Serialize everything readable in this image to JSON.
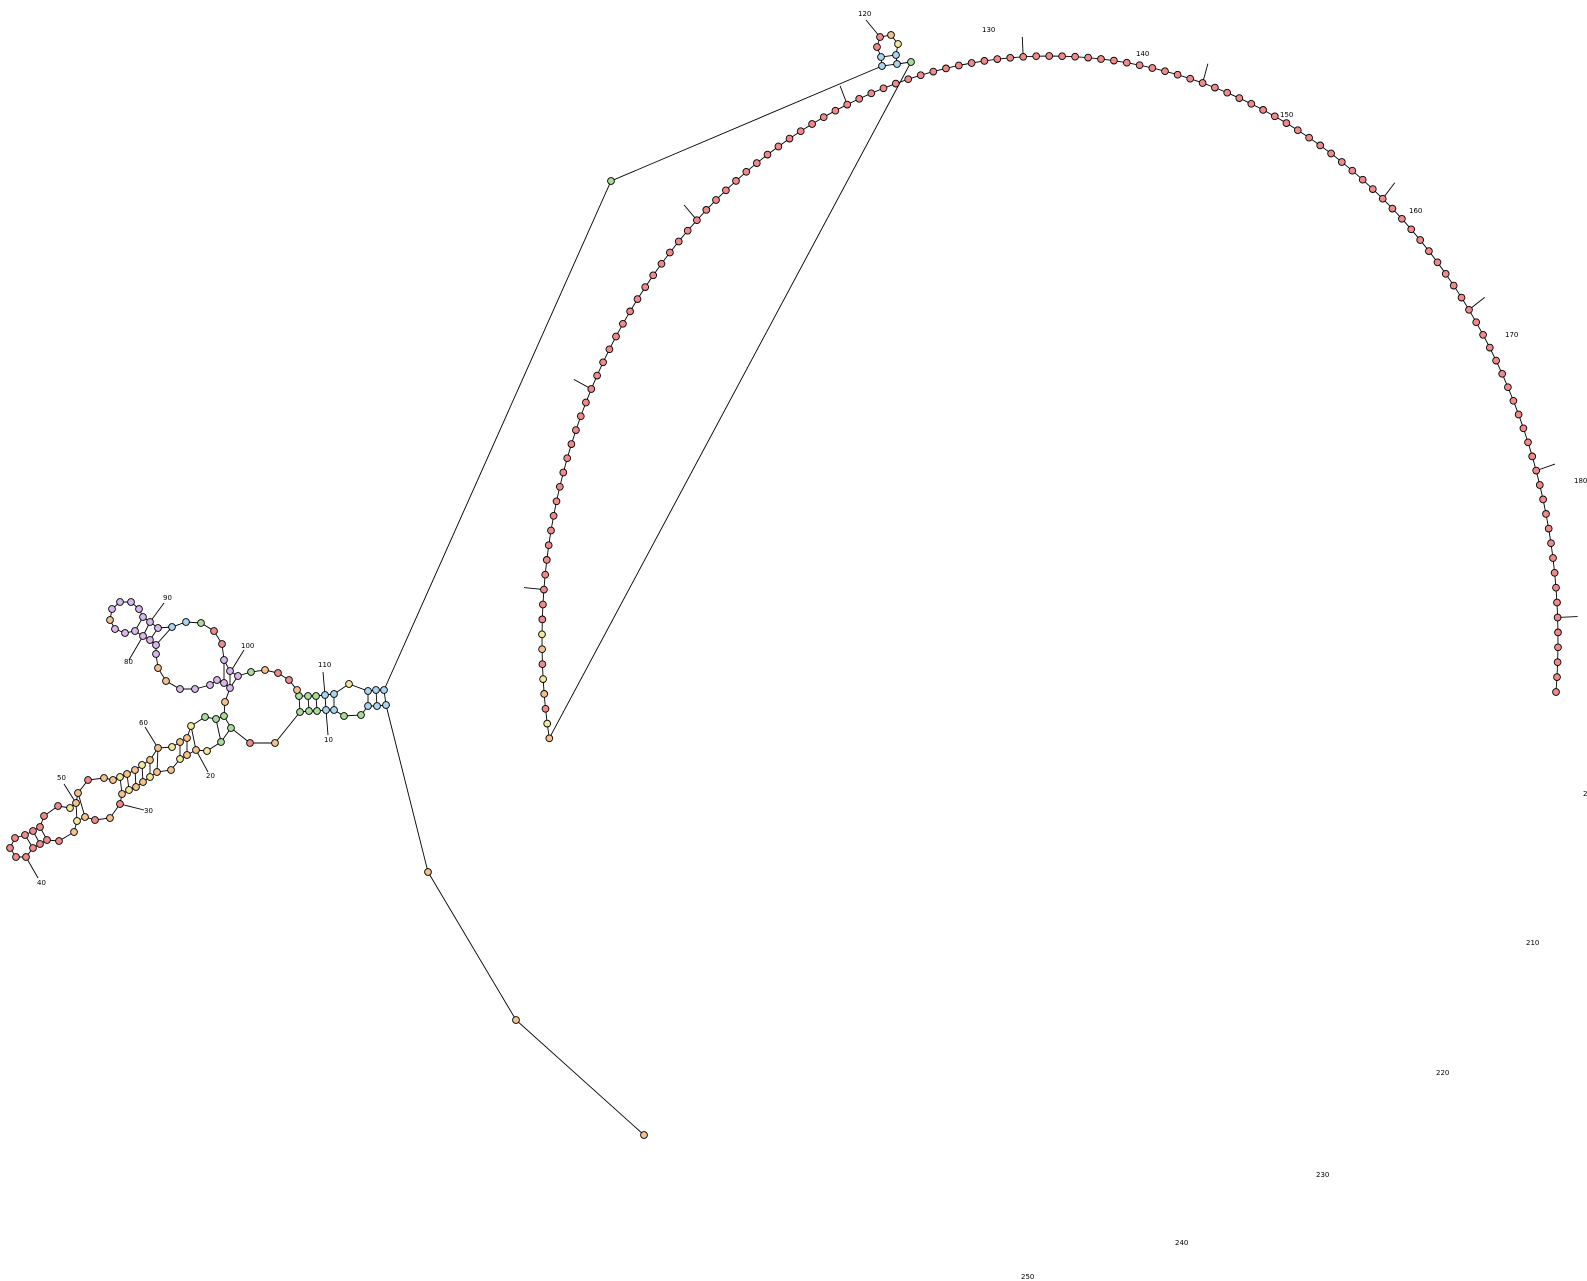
{
  "diagram": {
    "type": "rna-secondary-structure",
    "colors": {
      "unpaired-red": "#f08a8a",
      "orange": "#f4c08c",
      "yellow": "#f5e79a",
      "green": "#a8dc9a",
      "blue": "#a9d5ee",
      "lavender": "#d8b8ea",
      "outline": "#000000"
    },
    "position_labels": [
      "10",
      "20",
      "30",
      "40",
      "50",
      "60",
      "80",
      "90",
      "100",
      "110",
      "120",
      "130",
      "140",
      "150",
      "160",
      "170",
      "180",
      "2",
      "210",
      "220",
      "230",
      "240",
      "250"
    ]
  }
}
